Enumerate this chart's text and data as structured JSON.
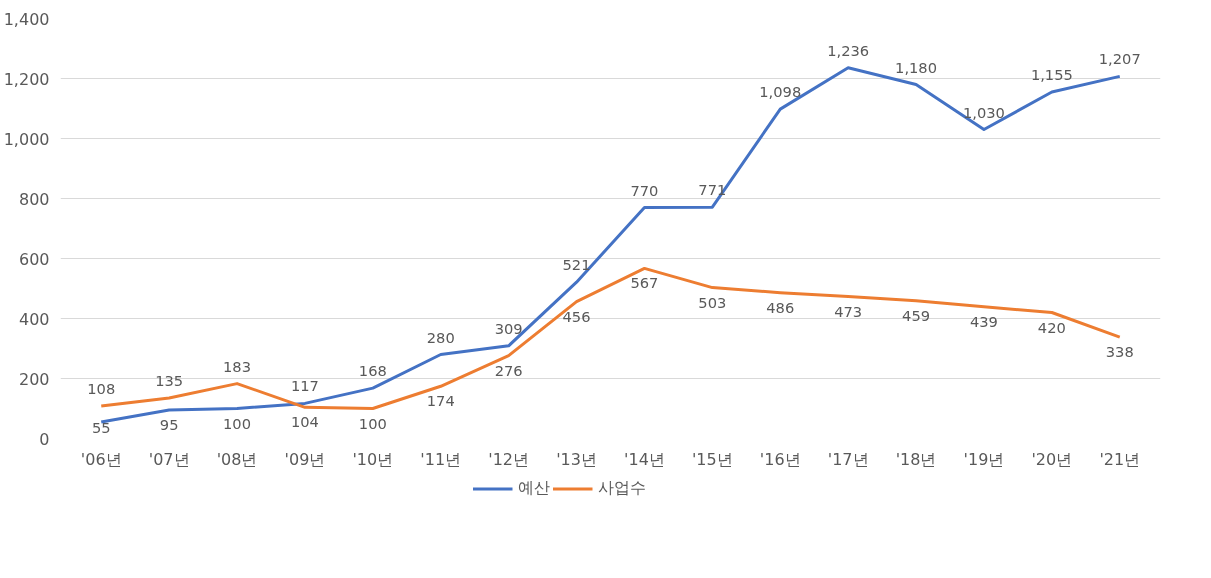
{
  "chart_data": {
    "type": "line",
    "categories": [
      "'06년",
      "'07년",
      "'08년",
      "'09년",
      "'10년",
      "'11년",
      "'12년",
      "'13년",
      "'14년",
      "'15년",
      "'16년",
      "'17년",
      "'18년",
      "'19년",
      "'20년",
      "'21년"
    ],
    "series": [
      {
        "name": "예산",
        "color": "#4472c4",
        "values": [
          55,
          95,
          100,
          117,
          168,
          280,
          309,
          521,
          770,
          771,
          1098,
          1236,
          1180,
          1030,
          1155,
          1207
        ],
        "value_labels": [
          "55",
          "95",
          "100",
          "117",
          "168",
          "280",
          "309",
          "521",
          "770",
          "771",
          "1,098",
          "1,236",
          "1,180",
          "1,030",
          "1,155",
          "1,207"
        ]
      },
      {
        "name": "사업수",
        "color": "#ed7d31",
        "values": [
          108,
          135,
          183,
          104,
          100,
          174,
          276,
          456,
          567,
          503,
          486,
          473,
          459,
          439,
          420,
          338
        ],
        "value_labels": [
          "108",
          "135",
          "183",
          "104",
          "100",
          "174",
          "276",
          "456",
          "567",
          "503",
          "486",
          "473",
          "459",
          "439",
          "420",
          "338"
        ]
      }
    ],
    "ylim": [
      0,
      1400
    ],
    "yticks": [
      0,
      200,
      400,
      600,
      800,
      {
        "value": 1000,
        "label": "1,000"
      },
      {
        "value": 1200,
        "label": "1,200"
      },
      {
        "value": 1400,
        "label": "1,400"
      }
    ],
    "grid": "y",
    "legend": "bottom",
    "line_style": "solid",
    "marker": "none"
  }
}
